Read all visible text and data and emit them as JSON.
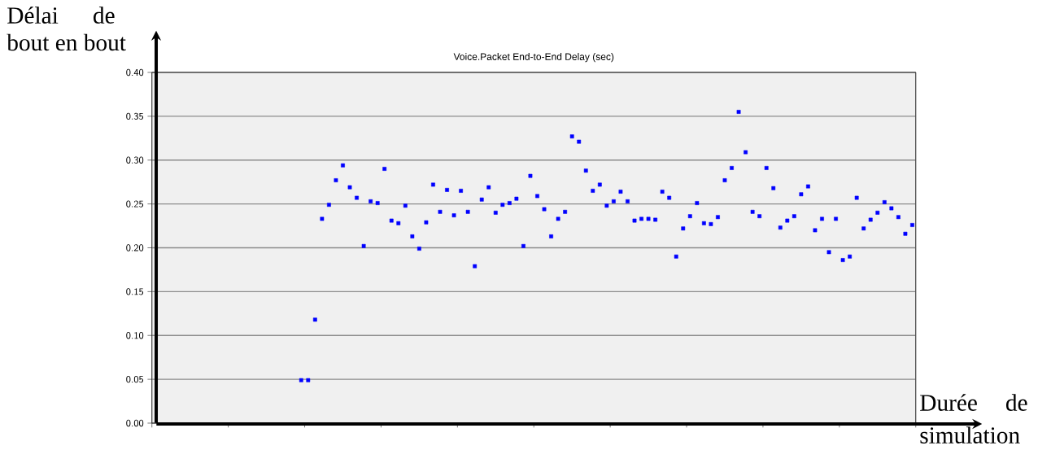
{
  "chart_data": {
    "type": "scatter",
    "title": "Voice.Packet End-to-End Delay (sec)",
    "xlabel": "Durée de simulation",
    "ylabel": "Délai de bout en bout",
    "categories": [
      null,
      null,
      null,
      null,
      null,
      null,
      null,
      null,
      null,
      null,
      null,
      null,
      null,
      null,
      null,
      null,
      null,
      null,
      null,
      null,
      null,
      null,
      null,
      null,
      null,
      null,
      null,
      null,
      null,
      null,
      null,
      null,
      null,
      null,
      null,
      null,
      null,
      null,
      null,
      null,
      null,
      null,
      null,
      null,
      null,
      null,
      null,
      null,
      null,
      null,
      null,
      null,
      null,
      null,
      null,
      null,
      null,
      null,
      null,
      null,
      null,
      null,
      null,
      null,
      null,
      null,
      null,
      null,
      null,
      null,
      null,
      null,
      null,
      null,
      null,
      null,
      null,
      null,
      null,
      null,
      null,
      null,
      null,
      null,
      null,
      null,
      null,
      null,
      null,
      null,
      null,
      null,
      null,
      null,
      null,
      null,
      null,
      null,
      null,
      null,
      null,
      null,
      null,
      null,
      null,
      null,
      null,
      null,
      null,
      null
    ],
    "series": [
      {
        "color": "#0000ff",
        "values": [
          null,
          null,
          null,
          null,
          null,
          null,
          null,
          null,
          null,
          null,
          null,
          null,
          null,
          null,
          null,
          null,
          null,
          null,
          null,
          null,
          null,
          0.049,
          0.049,
          0.118,
          0.233,
          0.249,
          0.277,
          0.294,
          0.269,
          0.257,
          0.202,
          0.253,
          0.251,
          0.29,
          0.231,
          0.228,
          0.248,
          0.213,
          0.199,
          0.229,
          0.272,
          0.241,
          0.266,
          0.237,
          0.265,
          0.241,
          0.179,
          0.255,
          0.269,
          0.24,
          0.249,
          0.251,
          0.256,
          0.202,
          0.282,
          0.259,
          0.244,
          0.213,
          0.233,
          0.241,
          0.327,
          0.321,
          0.288,
          0.265,
          0.272,
          0.248,
          0.253,
          0.264,
          0.253,
          0.231,
          0.233,
          0.233,
          0.232,
          0.264,
          0.257,
          0.19,
          0.222,
          0.236,
          0.251,
          0.228,
          0.227,
          0.235,
          0.277,
          0.291,
          0.355,
          0.309,
          0.241,
          0.236,
          0.291,
          0.268,
          0.223,
          0.231,
          0.236,
          0.261,
          0.27,
          0.22,
          0.233,
          0.195,
          0.233,
          0.186,
          0.19,
          0.257,
          0.222,
          0.232,
          0.24,
          0.252,
          0.245,
          0.235,
          0.216,
          0.226
        ]
      }
    ],
    "ylim": [
      0,
      0.4
    ],
    "yticks": [
      {
        "value": 0,
        "label": "0.00"
      },
      {
        "value": 0.05,
        "label": "0.05"
      },
      {
        "value": 0.1,
        "label": "0.10"
      },
      {
        "value": 0.15,
        "label": "0.15"
      },
      {
        "value": 0.2,
        "label": "0.20"
      },
      {
        "value": 0.25,
        "label": "0.25"
      },
      {
        "value": 0.3,
        "label": "0.30"
      },
      {
        "value": 0.35,
        "label": "0.35"
      },
      {
        "value": 0.4,
        "label": "0.40"
      }
    ],
    "grid": "y",
    "marker": "square",
    "tick_labels": "y"
  }
}
